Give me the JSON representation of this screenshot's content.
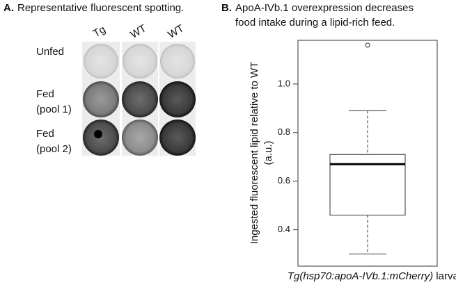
{
  "panel_a": {
    "label": "A.",
    "title": "Representative fluorescent spotting.",
    "columns": [
      "Tg",
      "WT",
      "WT"
    ],
    "rows": [
      [
        "Unfed"
      ],
      [
        "Fed",
        "(pool 1)"
      ],
      [
        "Fed",
        "(pool 2)"
      ]
    ]
  },
  "chart_data": {
    "type": "box",
    "label": "B.",
    "title": [
      "ApoA-IVb.1 overexpression decreases",
      "food intake during a lipid-rich feed."
    ],
    "ylabel": [
      "Ingested fluorescent lipid relative to WT",
      "(a.u.)"
    ],
    "xlabel": [
      "Tg(hsp70:apoA-IVb.1:mCherry)",
      "larvae"
    ],
    "boxes": [
      {
        "whislo": 0.3,
        "q1": 0.46,
        "med": 0.67,
        "q3": 0.71,
        "whishi": 0.89,
        "fliers": [
          1.16
        ]
      }
    ],
    "ylim": [
      0.25,
      1.18
    ],
    "yticks": [
      0.4,
      0.6,
      0.8,
      {
        "value": 1,
        "label": "1.0"
      }
    ]
  }
}
